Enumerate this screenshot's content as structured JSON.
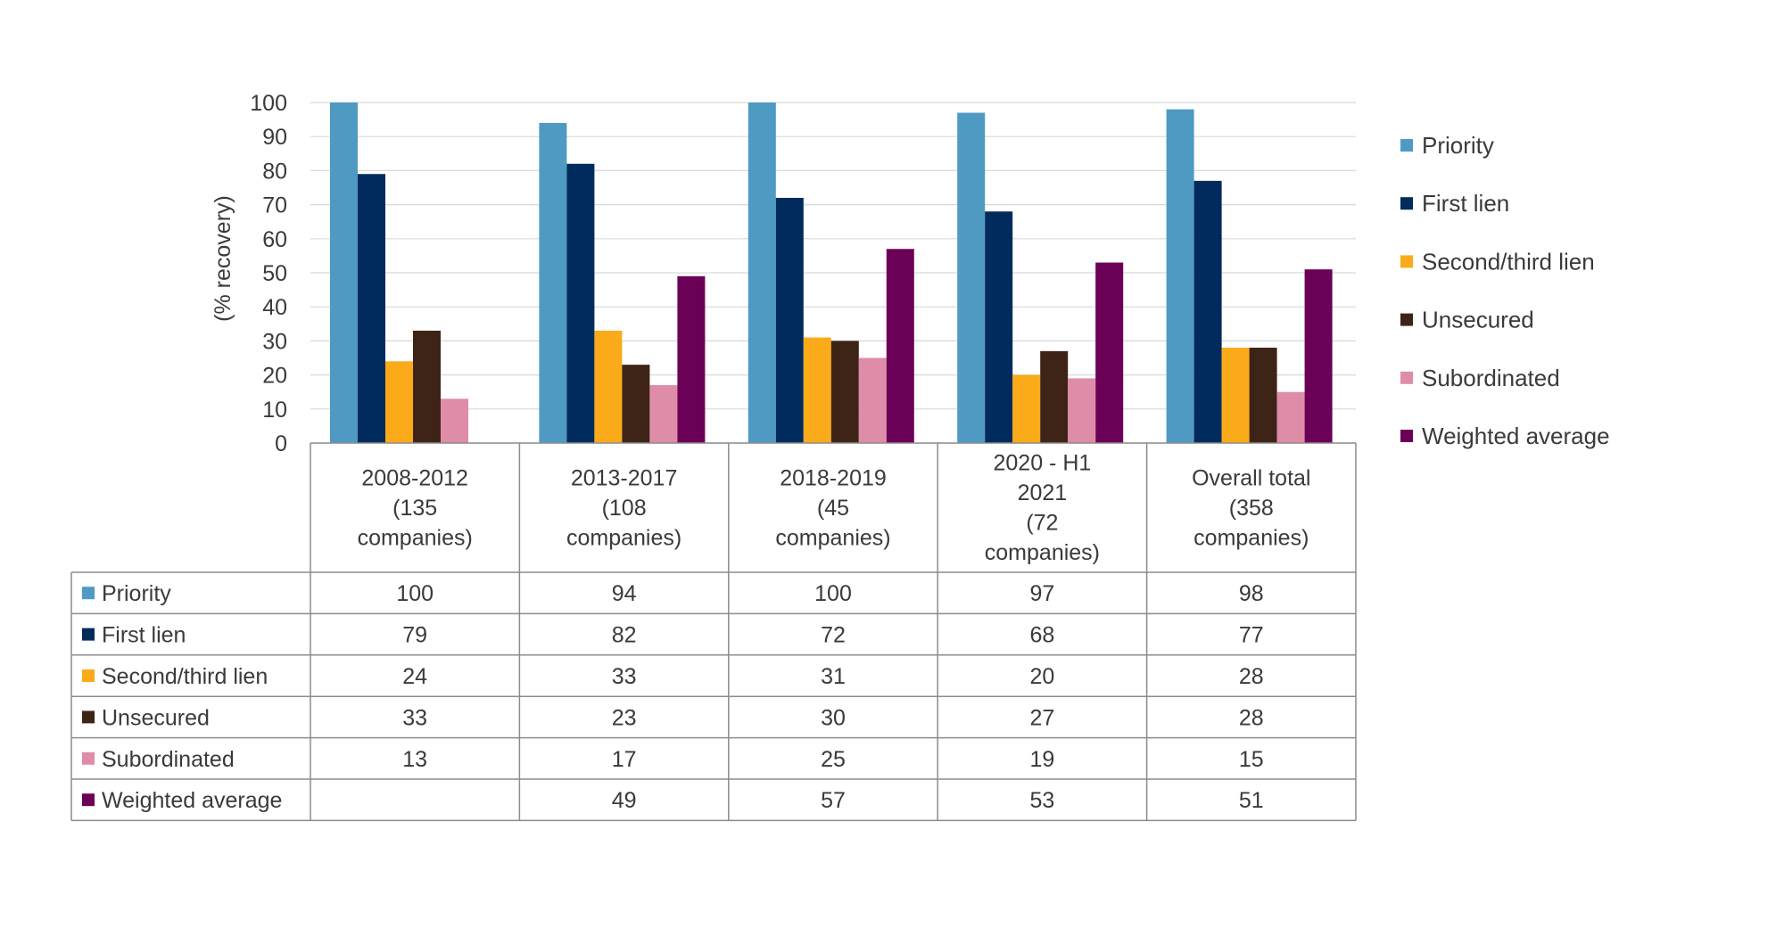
{
  "chart_data": {
    "type": "bar",
    "ylabel": "(% recovery)",
    "ylim": [
      0,
      100
    ],
    "yticks": [
      0,
      10,
      20,
      30,
      40,
      50,
      60,
      70,
      80,
      90,
      100
    ],
    "grid": true,
    "legend_position": "right",
    "data_table": true,
    "categories": [
      [
        "2008-2012",
        "(135",
        "companies)"
      ],
      [
        "2013-2017",
        "(108",
        "companies)"
      ],
      [
        "2018-2019",
        "(45",
        "companies)"
      ],
      [
        "2020 - H1",
        "2021",
        "(72",
        "companies)"
      ],
      [
        "Overall total",
        "(358",
        "companies)"
      ]
    ],
    "series": [
      {
        "name": "Priority",
        "color": "#4f9ac3",
        "values": [
          100,
          94,
          100,
          97,
          98
        ]
      },
      {
        "name": "First lien",
        "color": "#002b5c",
        "values": [
          79,
          82,
          72,
          68,
          77
        ]
      },
      {
        "name": "Second/third lien",
        "color": "#fbaa19",
        "values": [
          24,
          33,
          31,
          20,
          28
        ]
      },
      {
        "name": "Unsecured",
        "color": "#3e2416",
        "values": [
          33,
          23,
          30,
          27,
          28
        ]
      },
      {
        "name": "Subordinated",
        "color": "#df8ca8",
        "values": [
          13,
          17,
          25,
          19,
          15
        ]
      },
      {
        "name": "Weighted average",
        "color": "#6b0057",
        "values": [
          null,
          49,
          57,
          53,
          51
        ]
      }
    ]
  }
}
